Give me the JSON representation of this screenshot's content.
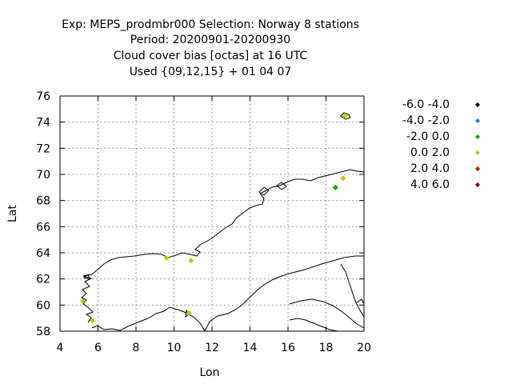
{
  "title_lines": [
    "Exp: MEPS_prodmbr000   Selection: Norway      8 stations",
    "Period: 20200901-20200930",
    "Cloud cover bias [octas] at  16 UTC",
    "Used {09,12,15} + 01 04 07"
  ],
  "chart_data": {
    "type": "scatter",
    "xlabel": "Lon",
    "ylabel": "Lat",
    "xlim": [
      4,
      20
    ],
    "ylim": [
      58,
      76
    ],
    "x_ticks": [
      "4",
      "6",
      "8",
      "10",
      "12",
      "14",
      "16",
      "18",
      "20"
    ],
    "y_ticks": [
      "58",
      "60",
      "62",
      "64",
      "66",
      "68",
      "70",
      "72",
      "74",
      "76"
    ],
    "grid": true,
    "legend_position": "right",
    "legend": [
      {
        "label": "-6.0 -4.0",
        "color": "#000000"
      },
      {
        "label": "-4.0 -2.0",
        "color": "#3a6fd8"
      },
      {
        "label": "-2.0 0.0",
        "color": "#00b000"
      },
      {
        "label": "0.0 2.0",
        "color": "#c8c800"
      },
      {
        "label": "2.0 4.0",
        "color": "#e00000"
      },
      {
        "label": "4.0 6.0",
        "color": "#800000"
      }
    ],
    "points": [
      {
        "lon": 19.0,
        "lat": 74.5,
        "class": 3
      },
      {
        "lon": 18.9,
        "lat": 69.7,
        "class": 3
      },
      {
        "lon": 18.5,
        "lat": 69.0,
        "class": 2
      },
      {
        "lon": 9.6,
        "lat": 63.6,
        "class": 3
      },
      {
        "lon": 10.9,
        "lat": 63.4,
        "class": 3
      },
      {
        "lon": 5.2,
        "lat": 60.3,
        "class": 3
      },
      {
        "lon": 10.8,
        "lat": 59.4,
        "class": 3
      },
      {
        "lon": 5.7,
        "lat": 58.8,
        "class": 3
      }
    ]
  }
}
